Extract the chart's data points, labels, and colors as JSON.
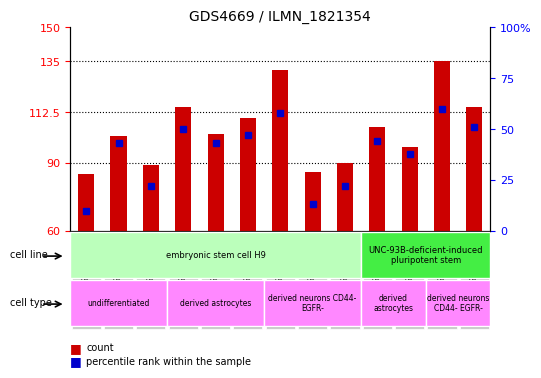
{
  "title": "GDS4669 / ILMN_1821354",
  "samples": [
    "GSM997555",
    "GSM997556",
    "GSM997557",
    "GSM997563",
    "GSM997564",
    "GSM997565",
    "GSM997566",
    "GSM997567",
    "GSM997568",
    "GSM997571",
    "GSM997572",
    "GSM997569",
    "GSM997570"
  ],
  "counts": [
    85,
    102,
    89,
    115,
    103,
    110,
    131,
    86,
    90,
    106,
    97,
    135,
    115
  ],
  "percentiles": [
    10,
    43,
    22,
    50,
    43,
    47,
    58,
    13,
    22,
    44,
    38,
    60,
    51
  ],
  "ylim_left": [
    60,
    150
  ],
  "yticks_left": [
    60,
    90,
    112.5,
    135,
    150
  ],
  "ytick_labels_left": [
    "60",
    "90",
    "112.5",
    "135",
    "150"
  ],
  "ylim_right": [
    0,
    100
  ],
  "yticks_right": [
    0,
    25,
    50,
    75,
    100
  ],
  "ytick_labels_right": [
    "0",
    "25",
    "50",
    "75",
    "100%"
  ],
  "bar_color": "#cc0000",
  "dot_color": "#0000cc",
  "cell_line_groups": [
    {
      "label": "embryonic stem cell H9",
      "start": 0,
      "end": 9,
      "color": "#bbffbb"
    },
    {
      "label": "UNC-93B-deficient-induced\npluripotent stem",
      "start": 9,
      "end": 13,
      "color": "#44ee44"
    }
  ],
  "cell_type_groups": [
    {
      "label": "undifferentiated",
      "start": 0,
      "end": 3,
      "color": "#ff88ff"
    },
    {
      "label": "derived astrocytes",
      "start": 3,
      "end": 6,
      "color": "#ff88ff"
    },
    {
      "label": "derived neurons CD44-\nEGFR-",
      "start": 6,
      "end": 9,
      "color": "#ff88ff"
    },
    {
      "label": "derived\nastrocytes",
      "start": 9,
      "end": 11,
      "color": "#ff88ff"
    },
    {
      "label": "derived neurons\nCD44- EGFR-",
      "start": 11,
      "end": 13,
      "color": "#ff88ff"
    }
  ],
  "bar_width": 0.5,
  "gridline_color": "#000000",
  "n_samples": 13
}
